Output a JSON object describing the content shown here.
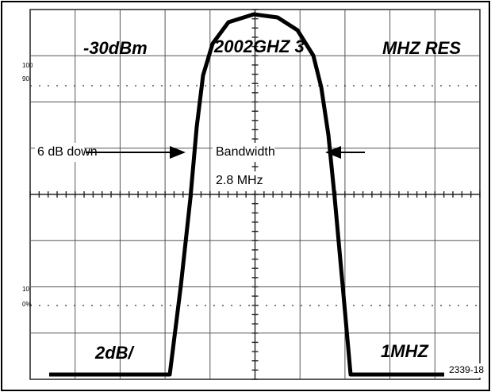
{
  "readout": {
    "top_left": "-30dBm",
    "top_center": "2002GHZ 3",
    "top_right": "MHZ RES",
    "bottom_left": "2dB/",
    "bottom_right": "1MHZ"
  },
  "graticule_labels": {
    "upper_1": "100",
    "upper_2": "90",
    "lower_1": "10",
    "lower_2": "0%"
  },
  "annotations": {
    "left": "6 dB down",
    "center": "Bandwidth",
    "value": "2.8 MHz"
  },
  "figure_number": "2339-18"
}
